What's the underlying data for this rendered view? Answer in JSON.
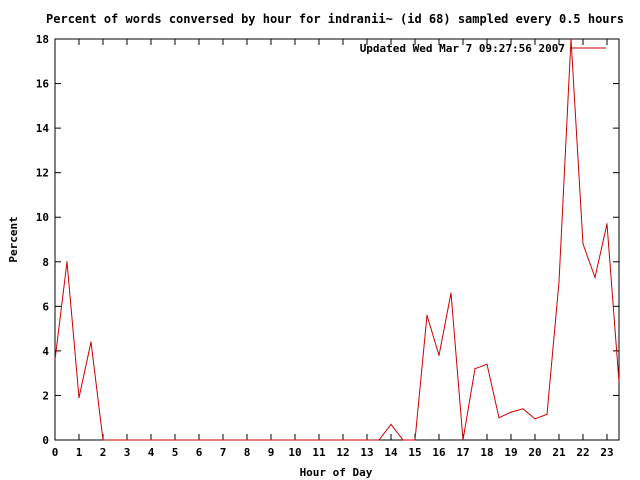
{
  "chart_data": {
    "type": "line",
    "title": "Percent of words conversed by hour for indranii~ (id 68) sampled every 0.5 hours",
    "xlabel": "Hour of Day",
    "ylabel": "Percent",
    "xlim": [
      0,
      23.5
    ],
    "ylim": [
      0,
      18
    ],
    "x_ticks": [
      "0",
      "1",
      "2",
      "3",
      "4",
      "5",
      "6",
      "7",
      "8",
      "9",
      "10",
      "11",
      "12",
      "13",
      "14",
      "15",
      "16",
      "17",
      "18",
      "19",
      "20",
      "21",
      "22",
      "23"
    ],
    "y_ticks": [
      "0",
      "2",
      "4",
      "6",
      "8",
      "10",
      "12",
      "14",
      "16",
      "18"
    ],
    "grid": false,
    "legend_position": "top-right",
    "colors": {
      "series": "#cc0000",
      "axis": "#000000"
    },
    "series": [
      {
        "name": "Updated Wed Mar  7 09:27:56 2007",
        "x": [
          0,
          0.5,
          1,
          1.5,
          2,
          2.5,
          3,
          3.5,
          4,
          4.5,
          5,
          5.5,
          6,
          6.5,
          7,
          7.5,
          8,
          8.5,
          9,
          9.5,
          10,
          10.5,
          11,
          11.5,
          12,
          12.5,
          13,
          13.5,
          14,
          14.5,
          15,
          15.5,
          16,
          16.5,
          17,
          17.5,
          18,
          18.5,
          19,
          19.5,
          20,
          20.5,
          21,
          21.5,
          22,
          22.5,
          23,
          23.5
        ],
        "values": [
          3.6,
          8.0,
          1.9,
          4.4,
          0,
          0,
          0,
          0,
          0,
          0,
          0,
          0,
          0,
          0,
          0,
          0,
          0,
          0,
          0,
          0,
          0,
          0,
          0,
          0,
          0,
          0,
          0,
          0,
          0.7,
          0,
          0,
          5.6,
          3.8,
          6.6,
          0,
          3.2,
          3.4,
          1.0,
          1.25,
          1.4,
          0.95,
          1.15,
          7.1,
          18.0,
          8.8,
          7.3,
          9.7,
          2.6
        ]
      }
    ]
  }
}
